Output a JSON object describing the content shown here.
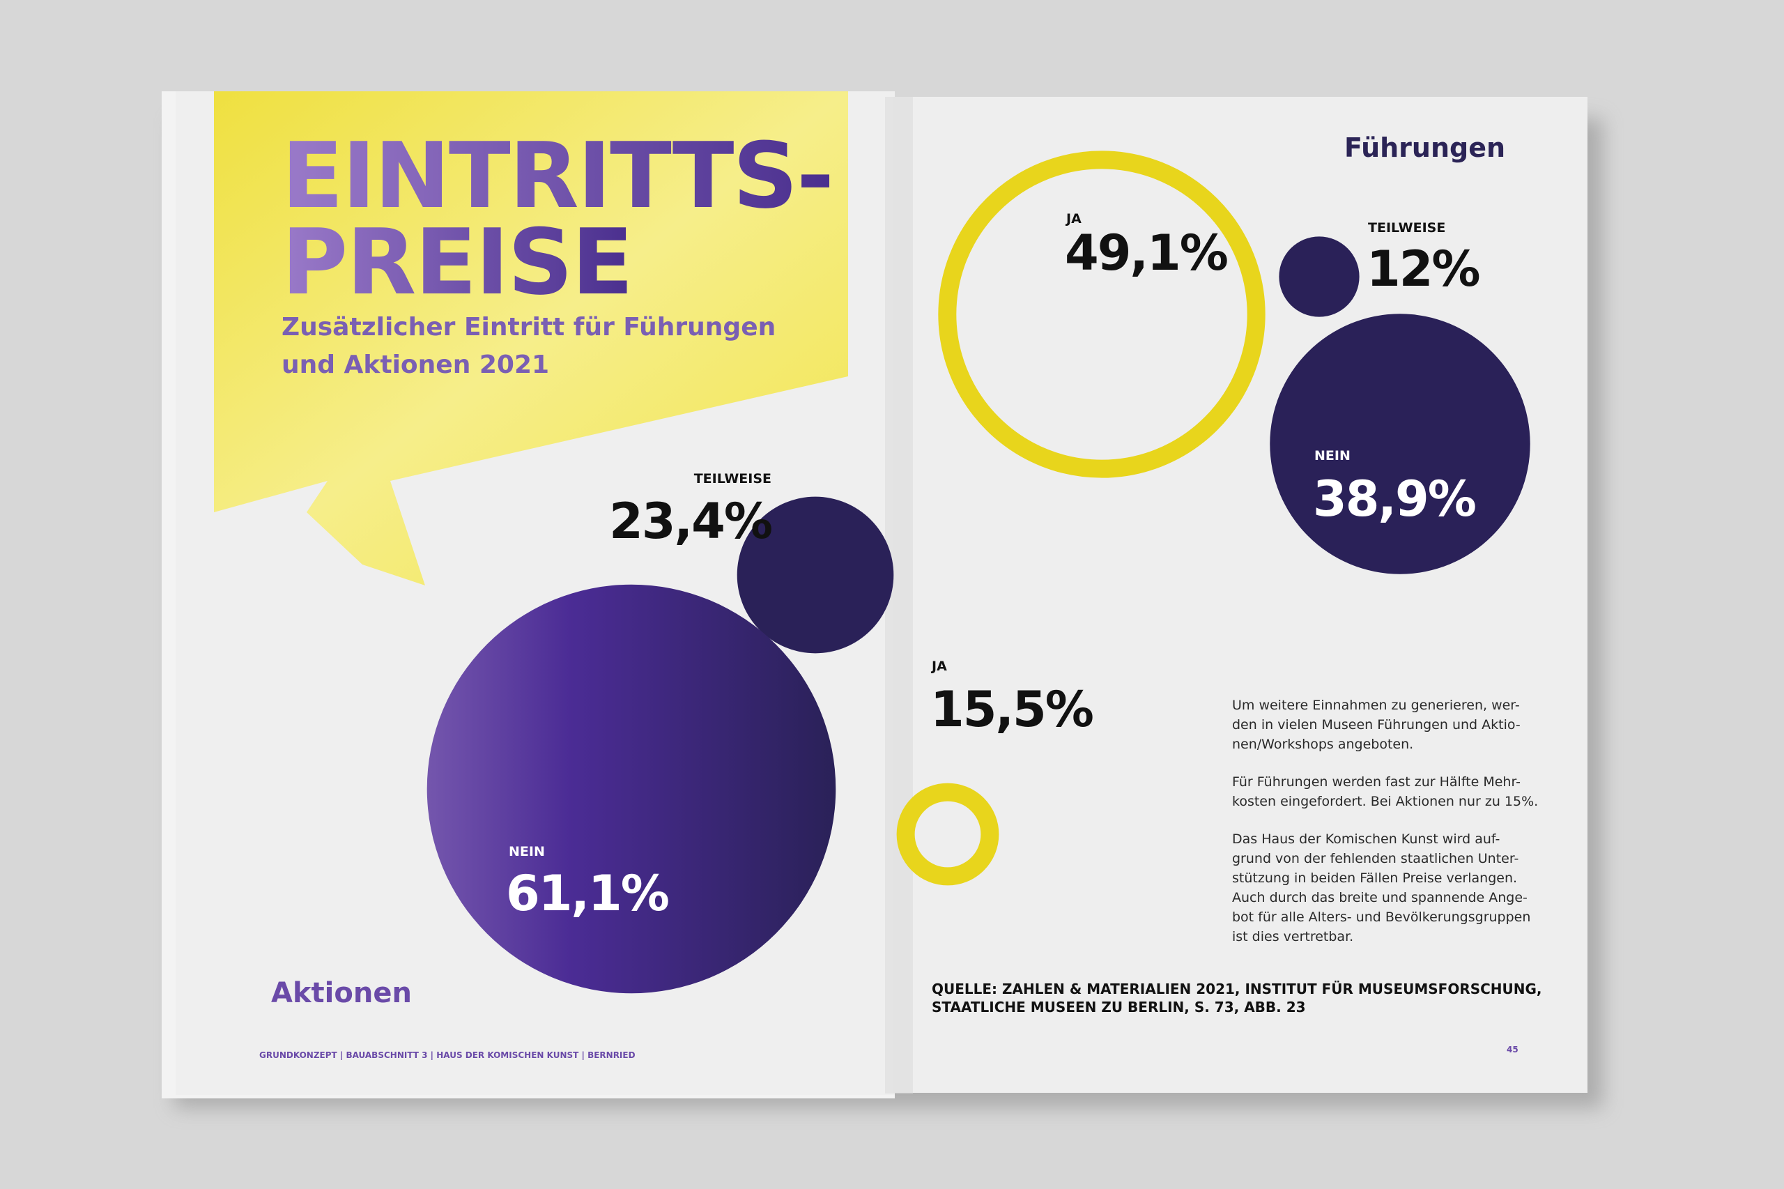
{
  "left_page": {
    "title_lines": [
      "EINTRITTS-",
      "PREISE"
    ],
    "subtitle_lines": [
      "Zusätzlicher Eintritt für Führungen",
      "und Aktionen 2021"
    ],
    "footer": "GRUNDKONZEPT | BAUABSCHNITT 3 | HAUS DER KOMISCHEN KUNST | BERNRIED"
  },
  "aktionen": {
    "title": "Aktionen",
    "items": [
      {
        "label": "TEILWEISE",
        "value": 23.4,
        "value_label": "23,4%"
      },
      {
        "label": "NEIN",
        "value": 61.1,
        "value_label": "61,1%"
      },
      {
        "label": "JA",
        "value": 15.5,
        "value_label": "15,5%"
      }
    ]
  },
  "fuehrungen": {
    "title": "Führungen",
    "items": [
      {
        "label": "JA",
        "value": 49.1,
        "value_label": "49,1%"
      },
      {
        "label": "TEILWEISE",
        "value": 12,
        "value_label": "12%"
      },
      {
        "label": "NEIN",
        "value": 38.9,
        "value_label": "38,9%"
      }
    ]
  },
  "right_page": {
    "paragraphs": [
      [
        "Um weitere Einnahmen zu generieren, wer-",
        "den in vielen Museen Führungen und Aktio-",
        "nen/Workshops angeboten."
      ],
      [
        "Für Führungen werden fast zur Hälfte Mehr-",
        "kosten eingefordert. Bei Aktionen nur zu 15%."
      ],
      [
        "Das Haus der Komischen Kunst wird auf-",
        "grund von der fehlenden staatlichen Unter-",
        "stützung in beiden Fällen Preise verlangen.",
        "Auch durch das breite und spannende Ange-",
        "bot für alle Alters- und Bevölkerungsgruppen",
        "ist dies vertretbar."
      ]
    ],
    "source_lines": [
      "QUELLE: ZAHLEN & MATERIALIEN 2021, INSTITUT FÜR MUSEUMSFORSCHUNG,",
      "STAATLICHE MUSEEN ZU BERLIN, S. 73, ABB. 23"
    ],
    "page_number": "45"
  }
}
